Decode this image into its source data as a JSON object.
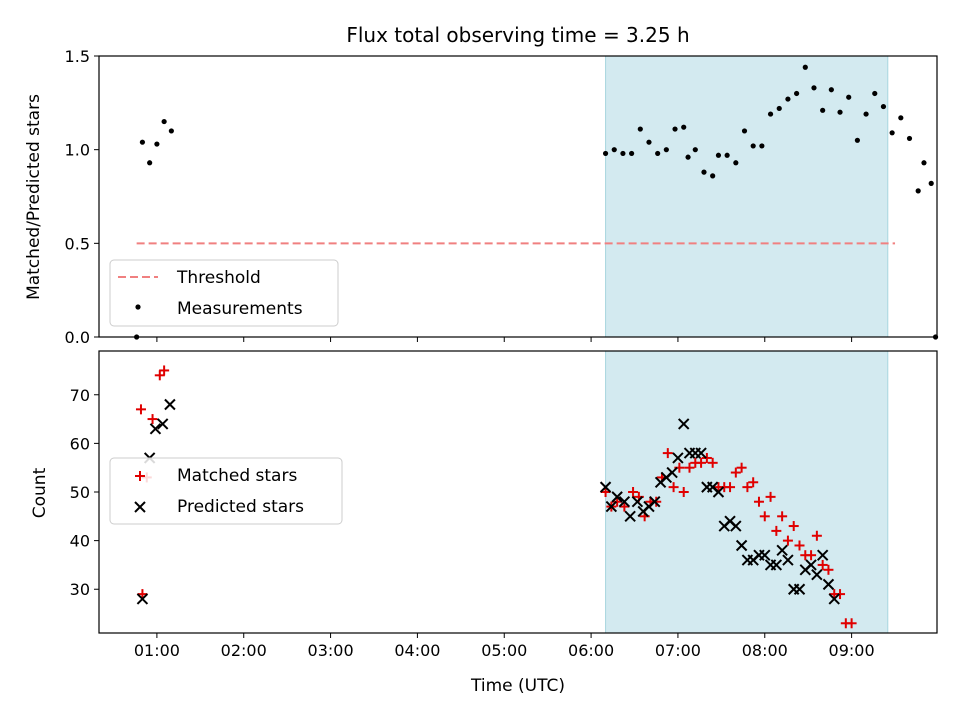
{
  "chart_data": [
    {
      "type": "scatter",
      "title": "Flux total observing time = 3.25 h",
      "xlabel": "",
      "ylabel": "Matched/Predicted stars",
      "xlim": [
        "00:20",
        "09:59"
      ],
      "ylim": [
        0,
        1.5
      ],
      "yticks": [
        "0.0",
        "0.5",
        "1.0",
        "1.5"
      ],
      "shaded_interval": [
        "06:10",
        "09:25"
      ],
      "legend_placement": "lower-left",
      "colors": {
        "threshold": "#f08080",
        "measurements": "#000000",
        "shade": "#d3eaf0",
        "shade_edge": "#a8d6df"
      },
      "threshold": {
        "name": "Threshold",
        "value": 0.5,
        "x_range": [
          "00:46",
          "09:30"
        ]
      },
      "series": [
        {
          "name": "Measurements",
          "points": [
            [
              "00:46",
              0.0
            ],
            [
              "00:50",
              1.04
            ],
            [
              "00:55",
              0.93
            ],
            [
              "01:00",
              1.03
            ],
            [
              "01:05",
              1.15
            ],
            [
              "01:10",
              1.1
            ],
            [
              "06:10",
              0.98
            ],
            [
              "06:16",
              1.0
            ],
            [
              "06:22",
              0.98
            ],
            [
              "06:28",
              0.98
            ],
            [
              "06:34",
              1.11
            ],
            [
              "06:40",
              1.04
            ],
            [
              "06:46",
              0.98
            ],
            [
              "06:52",
              1.0
            ],
            [
              "06:58",
              1.11
            ],
            [
              "07:04",
              1.12
            ],
            [
              "07:07",
              0.96
            ],
            [
              "07:12",
              1.0
            ],
            [
              "07:18",
              0.88
            ],
            [
              "07:24",
              0.86
            ],
            [
              "07:28",
              0.97
            ],
            [
              "07:34",
              0.97
            ],
            [
              "07:40",
              0.93
            ],
            [
              "07:46",
              1.1
            ],
            [
              "07:52",
              1.02
            ],
            [
              "07:58",
              1.02
            ],
            [
              "08:04",
              1.19
            ],
            [
              "08:10",
              1.22
            ],
            [
              "08:16",
              1.27
            ],
            [
              "08:22",
              1.3
            ],
            [
              "08:28",
              1.44
            ],
            [
              "08:34",
              1.33
            ],
            [
              "08:40",
              1.21
            ],
            [
              "08:46",
              1.32
            ],
            [
              "08:52",
              1.2
            ],
            [
              "08:58",
              1.28
            ],
            [
              "09:04",
              1.05
            ],
            [
              "09:10",
              1.19
            ],
            [
              "09:16",
              1.3
            ],
            [
              "09:22",
              1.23
            ],
            [
              "09:28",
              1.09
            ],
            [
              "09:34",
              1.17
            ],
            [
              "09:40",
              1.06
            ],
            [
              "09:46",
              0.78
            ],
            [
              "09:50",
              0.93
            ],
            [
              "09:55",
              0.82
            ],
            [
              "09:58",
              0.0
            ]
          ]
        }
      ]
    },
    {
      "type": "scatter",
      "title": "",
      "xlabel": "Time (UTC)",
      "ylabel": "Count",
      "xlim": [
        "00:20",
        "09:59"
      ],
      "ylim": [
        21,
        79
      ],
      "yticks": [
        30,
        40,
        50,
        60,
        70
      ],
      "xticks": [
        "01:00",
        "02:00",
        "03:00",
        "04:00",
        "05:00",
        "06:00",
        "07:00",
        "08:00",
        "09:00"
      ],
      "shaded_interval": [
        "06:10",
        "09:25"
      ],
      "legend_placement": "center-left",
      "colors": {
        "matched": "#e00000",
        "predicted": "#000000"
      },
      "series": [
        {
          "name": "Matched stars",
          "marker": "plus",
          "points": [
            [
              "00:49",
              67
            ],
            [
              "00:50",
              29
            ],
            [
              "00:53",
              53
            ],
            [
              "00:57",
              65
            ],
            [
              "01:02",
              74
            ],
            [
              "01:05",
              75
            ],
            [
              "06:10",
              50
            ],
            [
              "06:14",
              47
            ],
            [
              "06:18",
              48
            ],
            [
              "06:23",
              47
            ],
            [
              "06:29",
              50
            ],
            [
              "06:33",
              49
            ],
            [
              "06:37",
              45
            ],
            [
              "06:41",
              48
            ],
            [
              "06:45",
              48
            ],
            [
              "06:49",
              53
            ],
            [
              "06:53",
              58
            ],
            [
              "06:57",
              51
            ],
            [
              "07:01",
              55
            ],
            [
              "07:04",
              50
            ],
            [
              "07:08",
              55
            ],
            [
              "07:12",
              56
            ],
            [
              "07:16",
              56
            ],
            [
              "07:20",
              57
            ],
            [
              "07:24",
              56
            ],
            [
              "07:28",
              51
            ],
            [
              "07:32",
              51
            ],
            [
              "07:36",
              51
            ],
            [
              "07:40",
              54
            ],
            [
              "07:44",
              55
            ],
            [
              "07:48",
              51
            ],
            [
              "07:52",
              52
            ],
            [
              "07:56",
              48
            ],
            [
              "08:00",
              45
            ],
            [
              "08:04",
              49
            ],
            [
              "08:08",
              42
            ],
            [
              "08:12",
              45
            ],
            [
              "08:16",
              40
            ],
            [
              "08:20",
              43
            ],
            [
              "08:24",
              39
            ],
            [
              "08:28",
              37
            ],
            [
              "08:32",
              37
            ],
            [
              "08:36",
              41
            ],
            [
              "08:40",
              35
            ],
            [
              "08:44",
              34
            ],
            [
              "08:48",
              29
            ],
            [
              "08:52",
              29
            ],
            [
              "08:56",
              23
            ],
            [
              "09:00",
              23
            ]
          ]
        },
        {
          "name": "Predicted stars",
          "marker": "x",
          "points": [
            [
              "00:50",
              28
            ],
            [
              "00:55",
              57
            ],
            [
              "00:59",
              63
            ],
            [
              "01:04",
              64
            ],
            [
              "01:09",
              68
            ],
            [
              "06:10",
              51
            ],
            [
              "06:14",
              47
            ],
            [
              "06:18",
              49
            ],
            [
              "06:23",
              48
            ],
            [
              "06:27",
              45
            ],
            [
              "06:32",
              48
            ],
            [
              "06:36",
              46
            ],
            [
              "06:40",
              47
            ],
            [
              "06:44",
              48
            ],
            [
              "06:48",
              52
            ],
            [
              "06:52",
              53
            ],
            [
              "06:56",
              54
            ],
            [
              "07:00",
              57
            ],
            [
              "07:04",
              64
            ],
            [
              "07:08",
              58
            ],
            [
              "07:12",
              58
            ],
            [
              "07:16",
              58
            ],
            [
              "07:20",
              51
            ],
            [
              "07:24",
              51
            ],
            [
              "07:28",
              50
            ],
            [
              "07:32",
              43
            ],
            [
              "07:36",
              44
            ],
            [
              "07:40",
              43
            ],
            [
              "07:44",
              39
            ],
            [
              "07:48",
              36
            ],
            [
              "07:52",
              36
            ],
            [
              "07:56",
              37
            ],
            [
              "08:00",
              37
            ],
            [
              "08:04",
              35
            ],
            [
              "08:08",
              35
            ],
            [
              "08:12",
              38
            ],
            [
              "08:16",
              36
            ],
            [
              "08:20",
              30
            ],
            [
              "08:24",
              30
            ],
            [
              "08:28",
              34
            ],
            [
              "08:32",
              35
            ],
            [
              "08:36",
              33
            ],
            [
              "08:40",
              37
            ],
            [
              "08:44",
              31
            ],
            [
              "08:48",
              28
            ]
          ]
        }
      ]
    }
  ]
}
